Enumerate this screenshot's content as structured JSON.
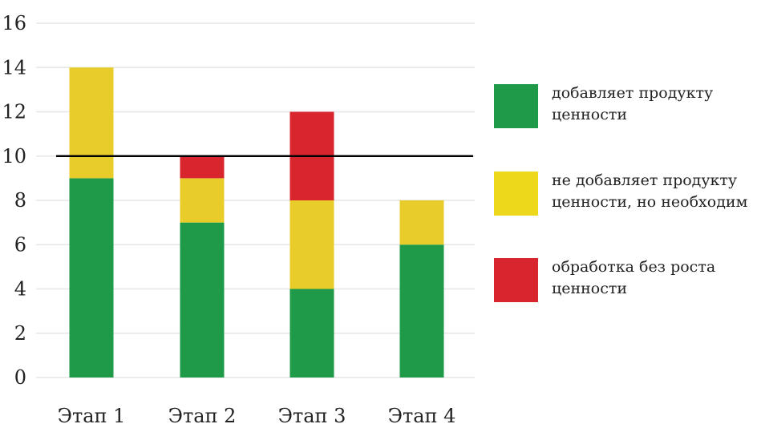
{
  "chart_data": {
    "type": "bar",
    "stacked": true,
    "categories": [
      "Этап 1",
      "Этап 2",
      "Этап 3",
      "Этап 4"
    ],
    "series": [
      {
        "name": "добавляет продукту ценности",
        "values": [
          9,
          7,
          4,
          6
        ],
        "color": "#1E9A48"
      },
      {
        "name": "не добавляет продукту ценности, но необходим",
        "values": [
          5,
          2,
          4,
          2
        ],
        "color": "#E8CD2A"
      },
      {
        "name": "обработка без роста ценности",
        "values": [
          0,
          1,
          4,
          0
        ],
        "color": "#D9262E"
      }
    ],
    "reference_line": {
      "value": 10,
      "color": "#000000"
    },
    "yticks": [
      "0",
      "2",
      "4",
      "6",
      "8",
      "10",
      "12",
      "14",
      "16"
    ],
    "ylim": [
      0,
      16
    ],
    "grid": true,
    "legend_position": "right",
    "title": "",
    "xlabel": "",
    "ylabel": ""
  },
  "legend": {
    "items": [
      {
        "line1": "добавляет продукту",
        "line2": "ценности",
        "color": "#1E9A48"
      },
      {
        "line1": "не добавляет продукту",
        "line2": "ценности, но необходим",
        "color": "#EDD81B"
      },
      {
        "line1": "обработка без роста",
        "line2": "ценности",
        "color": "#D9262E"
      }
    ]
  }
}
